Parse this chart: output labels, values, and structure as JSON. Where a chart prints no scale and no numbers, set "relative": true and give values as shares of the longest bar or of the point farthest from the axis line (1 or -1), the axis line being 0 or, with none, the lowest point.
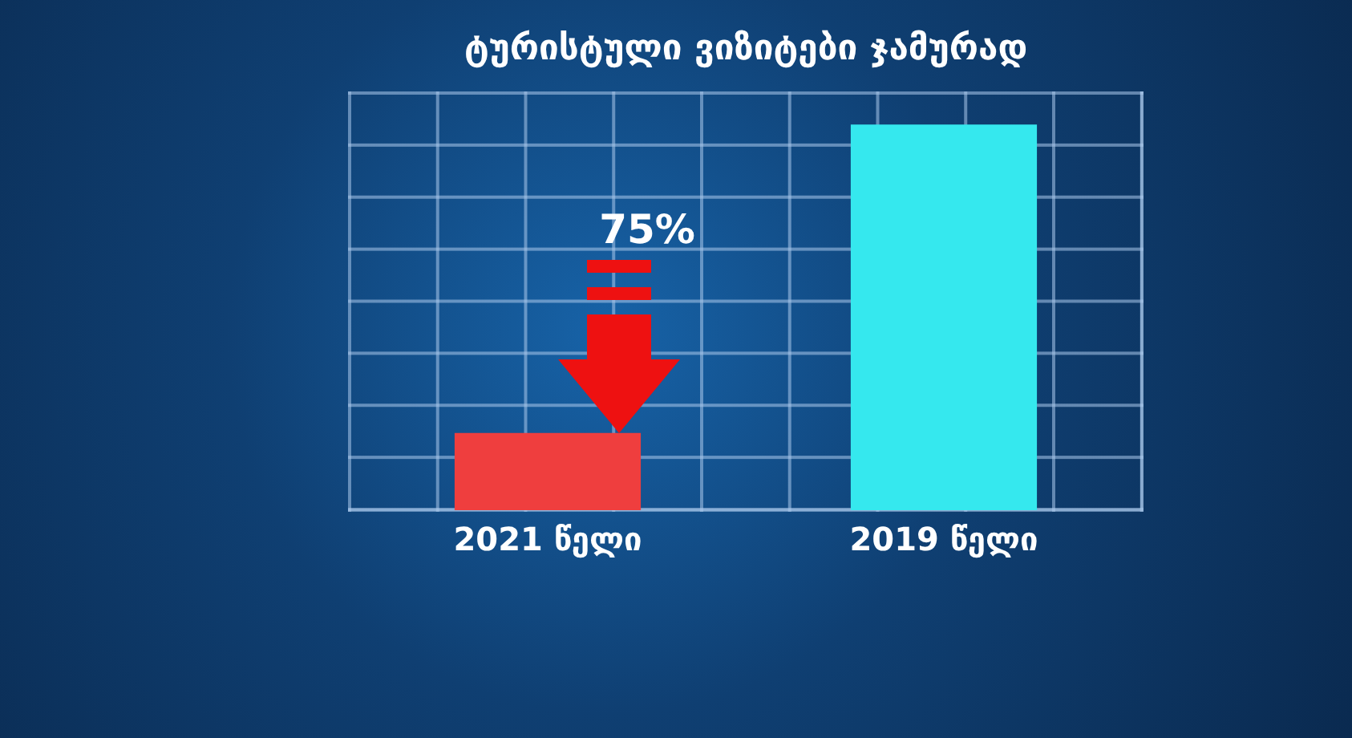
{
  "chart_data": {
    "type": "bar",
    "title": "ტურისტული ვიზიტები ჯამურად",
    "categories": [
      "2021 წელი",
      "2019 წელი"
    ],
    "values": [
      0.2,
      1
    ],
    "colors": [
      "#ef3e3e",
      "#35e8ee"
    ],
    "relative": true,
    "annotations": [
      "75%"
    ]
  }
}
